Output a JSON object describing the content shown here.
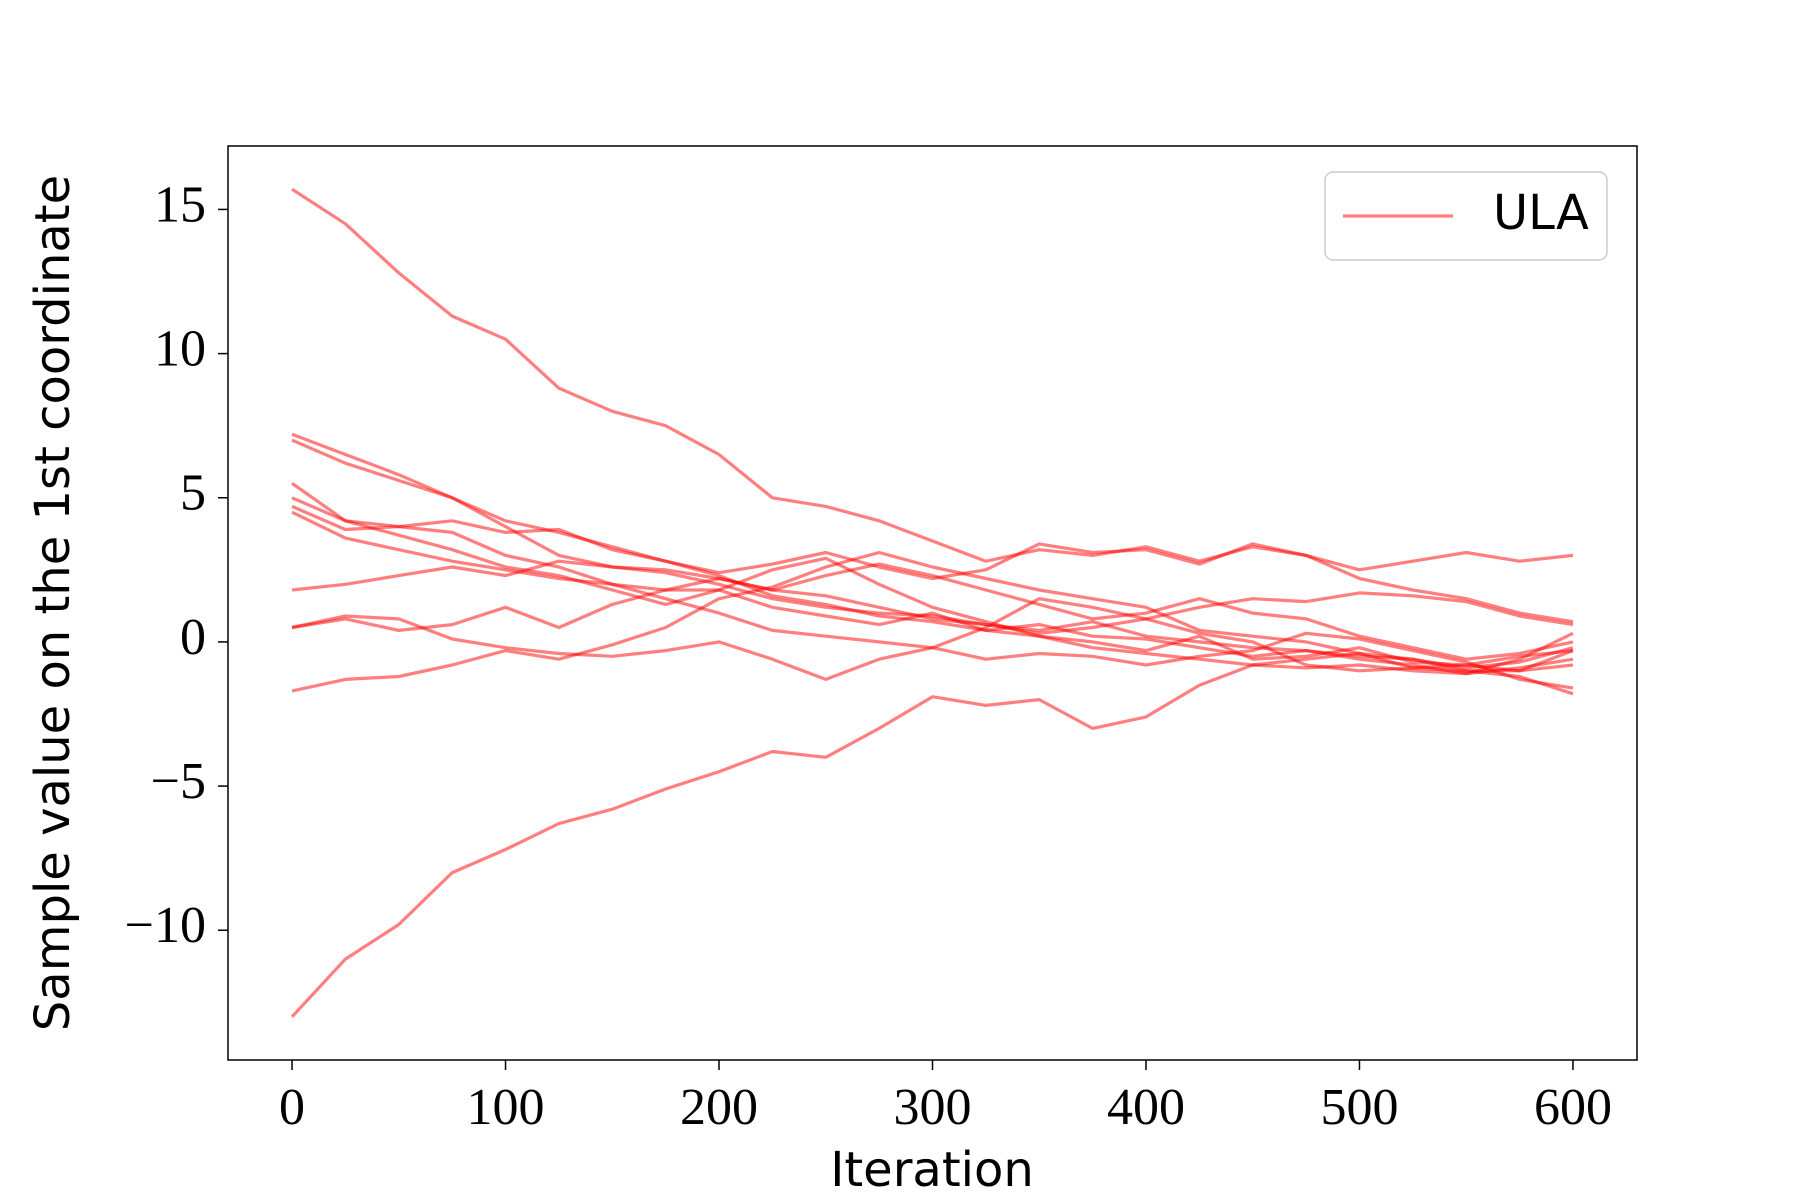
{
  "chart_data": {
    "type": "line",
    "x_label": "Iteration",
    "y_label": "Sample value on the 1st coordinate",
    "x": [
      0,
      25,
      50,
      75,
      100,
      125,
      150,
      175,
      200,
      225,
      250,
      275,
      300,
      325,
      350,
      375,
      400,
      425,
      450,
      475,
      500,
      525,
      550,
      575,
      600
    ],
    "xlim": [
      -30,
      630
    ],
    "xticks": [
      0,
      100,
      200,
      300,
      400,
      500,
      600
    ],
    "ylim": [
      -14.5,
      17.2
    ],
    "yticks": [
      {
        "value": -10,
        "label": "−10"
      },
      {
        "value": -5,
        "label": "−5"
      },
      0,
      5,
      10,
      15
    ],
    "opacity": 0.5,
    "legend": "upper right",
    "series": [
      {
        "name": "ULA",
        "color": "#ff0000",
        "values": [
          15.7,
          14.5,
          12.8,
          11.3,
          10.5,
          8.8,
          8.0,
          7.5,
          6.5,
          5.0,
          4.7,
          4.2,
          3.5,
          2.8,
          3.2,
          3.0,
          3.3,
          2.8,
          3.3,
          3.0,
          2.5,
          2.8,
          3.1,
          2.8,
          3.0
        ]
      },
      {
        "color": "#ff0000",
        "values": [
          -13,
          -11,
          -9.8,
          -8,
          -7.2,
          -6.3,
          -5.8,
          -5.1,
          -4.5,
          -3.8,
          -4.0,
          -3.0,
          -1.9,
          -2.2,
          -2.0,
          -3.0,
          -2.6,
          -1.5,
          -0.8,
          -0.9,
          -0.8,
          -1.0,
          -1.1,
          -0.9,
          -0.6
        ]
      },
      {
        "color": "#ff0000",
        "values": [
          7.2,
          6.5,
          5.8,
          5.0,
          4.2,
          3.8,
          3.3,
          2.8,
          2.4,
          2.7,
          3.1,
          2.6,
          2.2,
          2.5,
          3.4,
          3.1,
          3.2,
          2.7,
          3.4,
          3.0,
          2.2,
          1.8,
          1.5,
          1.0,
          0.7
        ]
      },
      {
        "color": "#ff0000",
        "values": [
          7.0,
          6.2,
          5.6,
          5.0,
          4.0,
          3.0,
          2.6,
          2.4,
          2.0,
          1.5,
          1.2,
          1.0,
          0.9,
          0.6,
          0.4,
          0.7,
          0.2,
          0.0,
          -0.2,
          -0.3,
          -0.5,
          -0.6,
          -1.0,
          -1.0,
          -0.8
        ]
      },
      {
        "color": "#ff0000",
        "values": [
          5.5,
          4.2,
          4.0,
          3.8,
          3.0,
          2.6,
          2.0,
          1.8,
          2.2,
          1.8,
          1.6,
          1.2,
          0.8,
          0.6,
          0.3,
          0.5,
          0.8,
          1.2,
          1.5,
          1.4,
          1.7,
          1.6,
          1.4,
          0.9,
          0.6
        ]
      },
      {
        "color": "#ff0000",
        "values": [
          5.0,
          4.2,
          3.7,
          3.2,
          2.6,
          2.3,
          1.8,
          1.3,
          1.8,
          2.5,
          2.9,
          2.0,
          1.2,
          0.7,
          0.2,
          -0.2,
          -0.4,
          -0.6,
          -0.8,
          -0.6,
          -0.4,
          -0.9,
          -1.0,
          -1.2,
          -1.8
        ]
      },
      {
        "color": "#ff0000",
        "values": [
          4.7,
          3.9,
          4.0,
          4.2,
          3.8,
          3.9,
          3.2,
          2.8,
          2.3,
          1.6,
          1.3,
          0.9,
          0.7,
          0.4,
          0.6,
          0.2,
          0.1,
          -0.2,
          -0.5,
          -0.3,
          -0.6,
          -0.8,
          -1.1,
          -0.6,
          0.3
        ]
      },
      {
        "color": "#ff0000",
        "values": [
          1.8,
          2.0,
          2.3,
          2.6,
          2.3,
          2.8,
          2.6,
          2.5,
          2.2,
          1.8,
          2.3,
          2.7,
          2.3,
          1.8,
          1.3,
          0.8,
          1.0,
          1.5,
          1.0,
          0.8,
          0.2,
          -0.2,
          -0.6,
          -0.4,
          0.0
        ]
      },
      {
        "color": "#ff0000",
        "values": [
          0.5,
          0.8,
          0.4,
          0.6,
          1.2,
          0.5,
          1.3,
          1.8,
          1.8,
          1.2,
          0.9,
          0.6,
          1.0,
          0.4,
          0.2,
          0.0,
          -0.3,
          0.2,
          -0.6,
          -0.5,
          -0.2,
          -0.7,
          -0.8,
          -1.0,
          -0.3
        ]
      },
      {
        "color": "#ff0000",
        "values": [
          -1.7,
          -1.3,
          -1.2,
          -0.8,
          -0.3,
          -0.6,
          -0.1,
          0.5,
          1.5,
          1.9,
          2.6,
          3.1,
          2.6,
          2.2,
          1.8,
          1.5,
          1.2,
          0.4,
          0.2,
          0.0,
          -0.4,
          -0.6,
          -0.9,
          -0.7,
          -0.2
        ]
      },
      {
        "color": "#ff0000",
        "values": [
          4.5,
          3.6,
          3.2,
          2.8,
          2.5,
          2.2,
          2.0,
          1.5,
          1.0,
          0.4,
          0.2,
          0.0,
          -0.2,
          -0.6,
          -0.4,
          -0.5,
          -0.8,
          -0.5,
          -0.3,
          0.3,
          0.1,
          -0.3,
          -0.7,
          -1.3,
          -1.6
        ]
      },
      {
        "color": "#ff0000",
        "values": [
          0.5,
          0.9,
          0.8,
          0.1,
          -0.2,
          -0.4,
          -0.5,
          -0.3,
          0.0,
          -0.6,
          -1.3,
          -0.6,
          -0.2,
          0.5,
          1.5,
          1.2,
          0.8,
          0.3,
          0.0,
          -0.8,
          -1.0,
          -0.9,
          -0.8,
          -0.5,
          -0.3
        ]
      }
    ]
  }
}
